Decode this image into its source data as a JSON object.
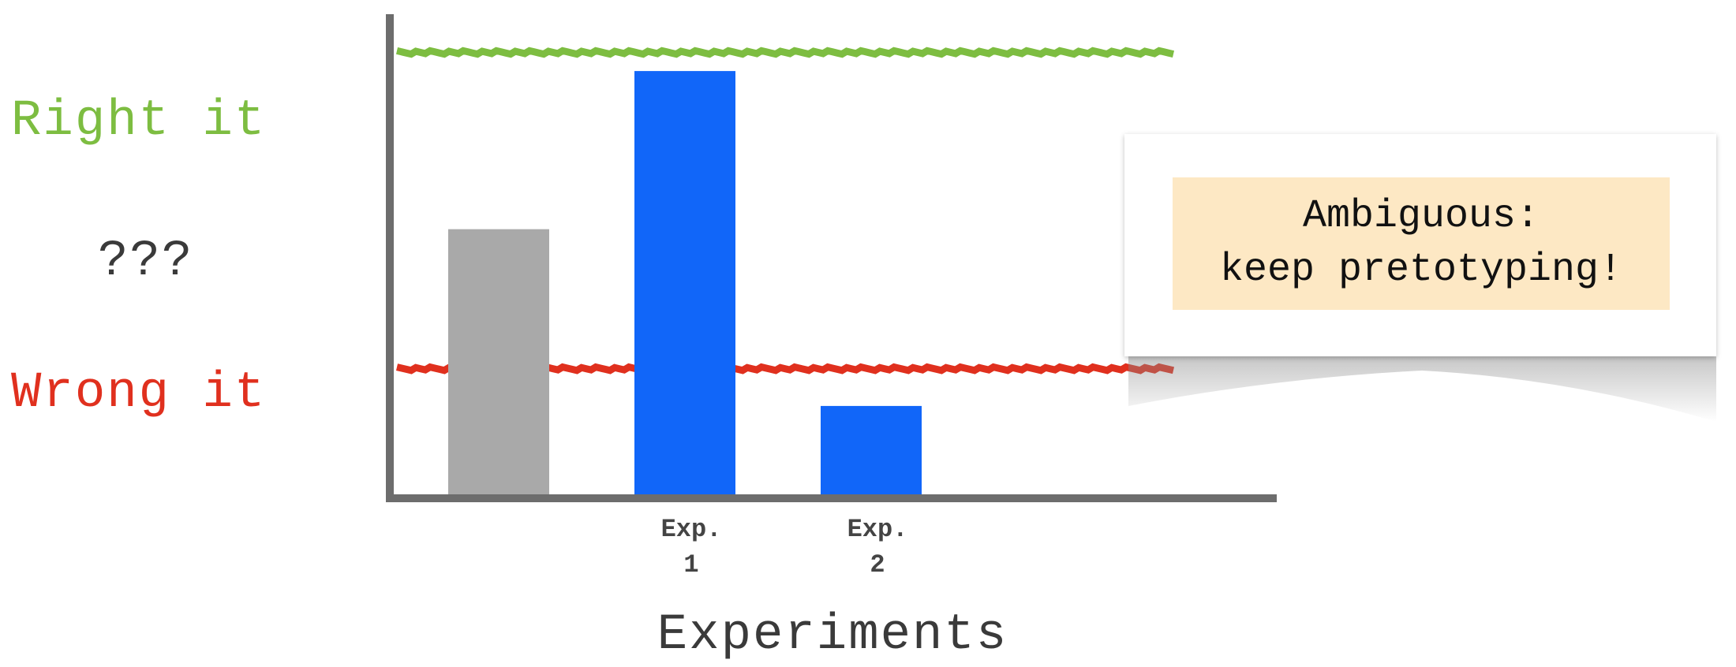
{
  "side_labels": {
    "right": "Right it",
    "unknown": "???",
    "wrong": "Wrong it"
  },
  "callout": {
    "line1": "Ambiguous:",
    "line2": "keep pretotyping!"
  },
  "colors": {
    "right_line": "#7dbd41",
    "wrong_line": "#e0301e",
    "baseline_bar": "#a9a9a9",
    "experiment_bar": "#1166f9",
    "axis": "#6d6d6d",
    "note_background": "#fde8c4"
  },
  "chart_data": {
    "type": "bar",
    "categories": [
      "",
      "Exp.\n1",
      "Exp.\n2"
    ],
    "values": [
      57,
      91,
      19
    ],
    "bar_colors": [
      "#a9a9a9",
      "#1166f9",
      "#1166f9"
    ],
    "xlabel": "Experiments",
    "ylabel": "",
    "ylim": [
      0,
      100
    ],
    "threshold_lines": [
      {
        "name": "Right it",
        "value": 95,
        "color": "#7dbd41"
      },
      {
        "name": "Wrong it",
        "value": 27,
        "color": "#e0301e"
      }
    ],
    "grid": false,
    "legend": "none"
  }
}
